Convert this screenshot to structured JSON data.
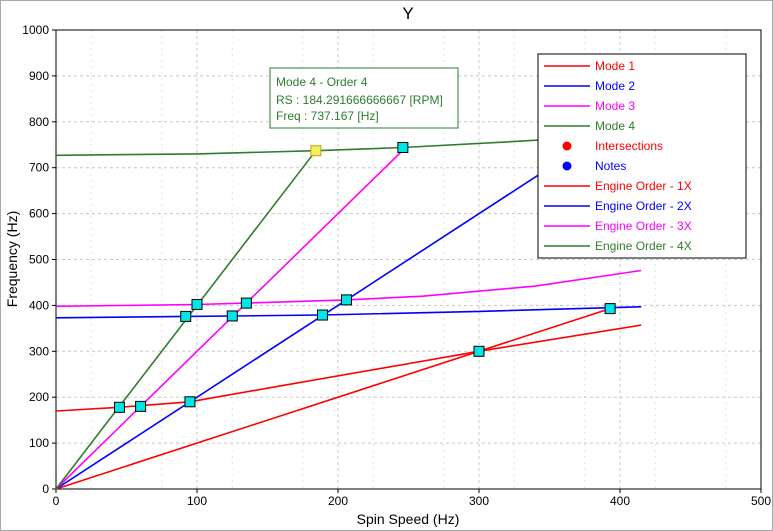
{
  "chart_data": {
    "type": "line",
    "title": "Y",
    "xlabel": "Spin Speed (Hz)",
    "ylabel": "Frequency (Hz)",
    "xlim": [
      0,
      500
    ],
    "ylim": [
      0,
      1000
    ],
    "xticks": [
      "0",
      "100",
      "200",
      "300",
      "400",
      "500"
    ],
    "yticks": [
      "0",
      "100",
      "200",
      "300",
      "400",
      "500",
      "600",
      "700",
      "800",
      "900",
      "1000"
    ],
    "grid": true,
    "legend_position": "top-right",
    "series": [
      {
        "name": "Mode 1",
        "color": "#ff0000",
        "kind": "line",
        "points": [
          [
            0,
            170
          ],
          [
            45,
            178
          ],
          [
            95,
            190
          ],
          [
            160,
            225
          ],
          [
            300,
            300
          ],
          [
            415,
            357
          ]
        ]
      },
      {
        "name": "Mode 2",
        "color": "#0000ff",
        "kind": "line",
        "points": [
          [
            0,
            373
          ],
          [
            92,
            376
          ],
          [
            125,
            377
          ],
          [
            189,
            379
          ],
          [
            300,
            387
          ],
          [
            415,
            397
          ]
        ]
      },
      {
        "name": "Mode 3",
        "color": "#ff00ff",
        "kind": "line",
        "points": [
          [
            0,
            398
          ],
          [
            100,
            402
          ],
          [
            135,
            405
          ],
          [
            206,
            412
          ],
          [
            260,
            420
          ],
          [
            340,
            442
          ],
          [
            415,
            476
          ]
        ]
      },
      {
        "name": "Mode 4",
        "color": "#2e7d2e",
        "kind": "line",
        "points": [
          [
            0,
            727
          ],
          [
            100,
            730
          ],
          [
            184.29,
            737
          ],
          [
            246,
            744
          ],
          [
            330,
            758
          ],
          [
            385,
            768
          ]
        ]
      },
      {
        "name": "Intersections",
        "color": "#ff0000",
        "kind": "marker",
        "points": []
      },
      {
        "name": "Notes",
        "color": "#0000ff",
        "kind": "marker",
        "points": []
      },
      {
        "name": "Engine Order - 1X",
        "color": "#ff0000",
        "kind": "line",
        "points": [
          [
            0,
            0
          ],
          [
            393,
            393
          ]
        ]
      },
      {
        "name": "Engine Order - 2X",
        "color": "#0000ff",
        "kind": "line",
        "points": [
          [
            0,
            0
          ],
          [
            385,
            770
          ]
        ]
      },
      {
        "name": "Engine Order - 3X",
        "color": "#ff00ff",
        "kind": "line",
        "points": [
          [
            0,
            0
          ],
          [
            248,
            744
          ]
        ]
      },
      {
        "name": "Engine Order - 4X",
        "color": "#2e7d2e",
        "kind": "line",
        "points": [
          [
            0,
            0
          ],
          [
            184.29,
            737
          ]
        ]
      }
    ],
    "intersections": [
      [
        45,
        178
      ],
      [
        60,
        180
      ],
      [
        95,
        190
      ],
      [
        300,
        300
      ],
      [
        393,
        393
      ],
      [
        92,
        376
      ],
      [
        125,
        377
      ],
      [
        189,
        379
      ],
      [
        385,
        768
      ],
      [
        100,
        402
      ],
      [
        135,
        405
      ],
      [
        206,
        412
      ],
      [
        246,
        744
      ],
      [
        184.29,
        737
      ]
    ],
    "highlighted_point": [
      184.29,
      737
    ],
    "tooltip": {
      "line1": "Mode 4 - Order 4",
      "line2": "RS : 184.291666666667 [RPM]",
      "line3": "Freq : 737.167 [Hz]"
    }
  }
}
